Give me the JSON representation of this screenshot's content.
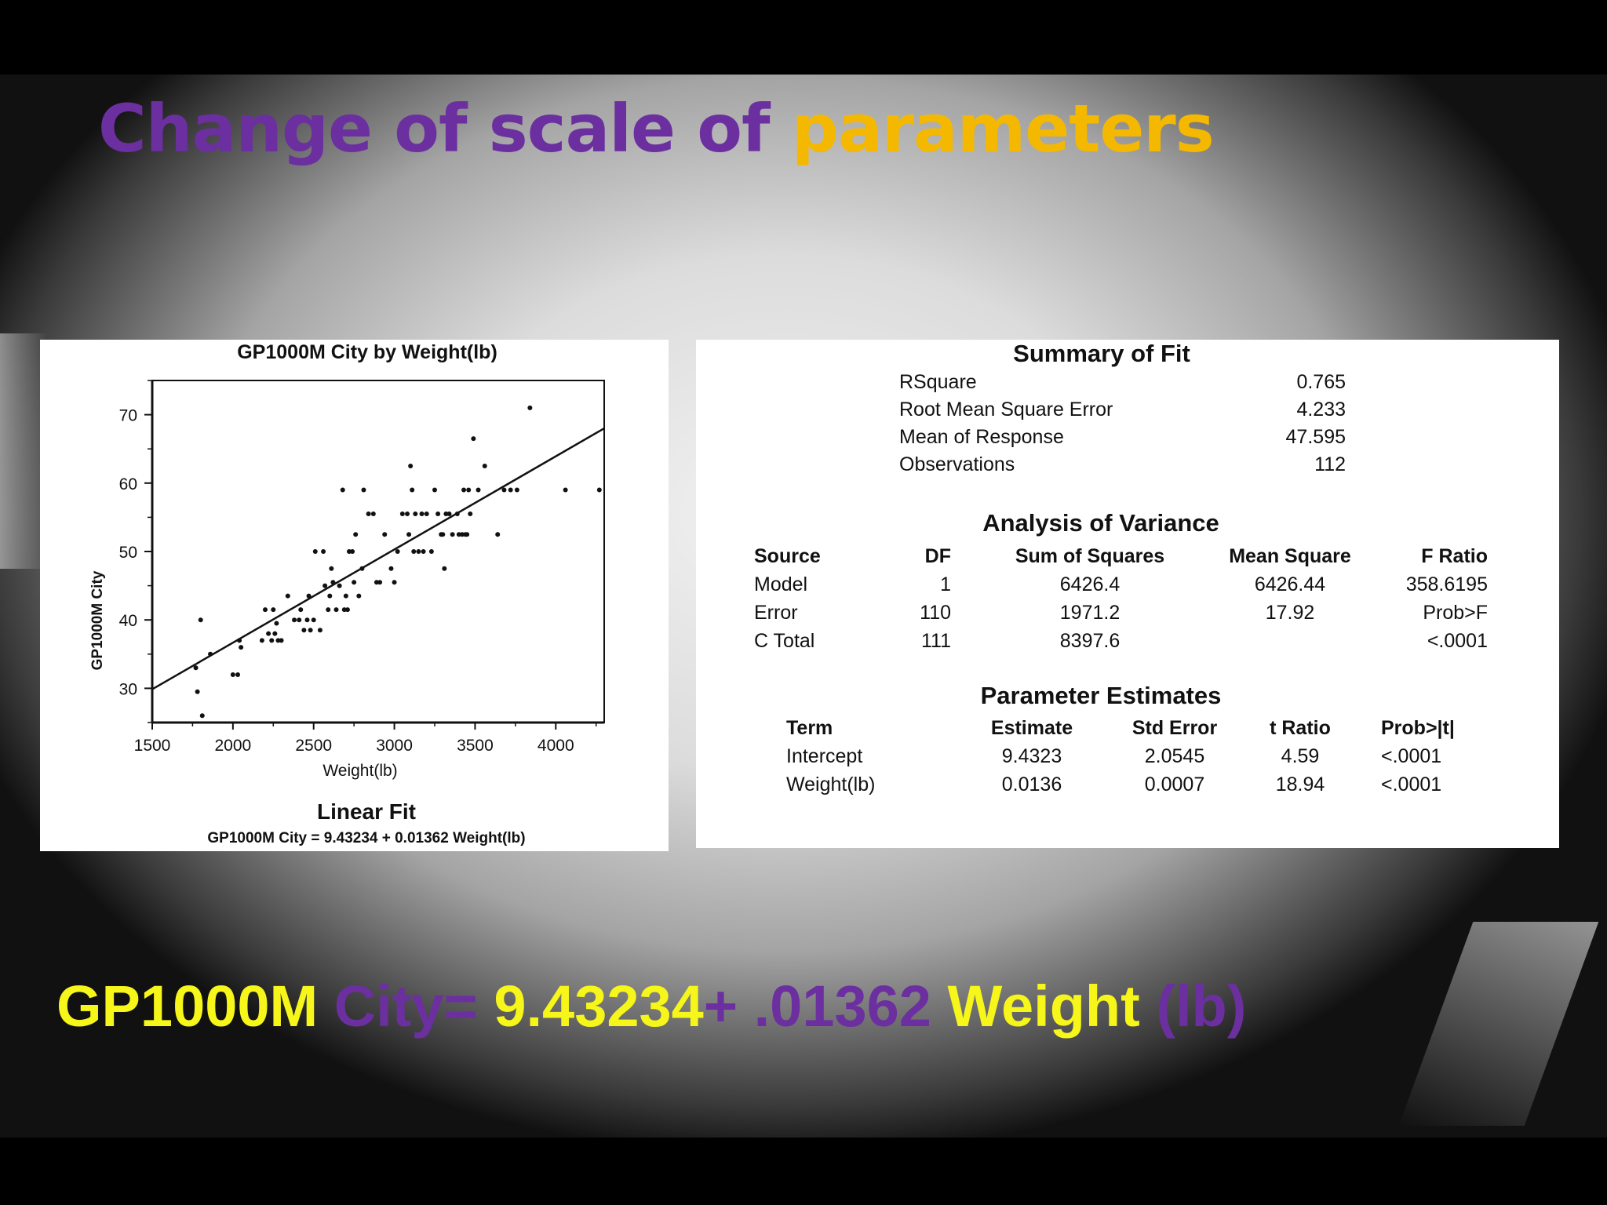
{
  "title": {
    "part1": "Change of scale of ",
    "part2": "parameters"
  },
  "colors": {
    "purple": "#6b2fa0",
    "gold": "#f5b800",
    "yellow": "#f6f61a"
  },
  "chart_data": {
    "type": "scatter",
    "title": "GP1000M City by Weight(lb)",
    "xlabel": "Weight(lb)",
    "ylabel": "GP1000M City",
    "xlim": [
      1500,
      4300
    ],
    "ylim": [
      25,
      75
    ],
    "x_ticks": [
      1500,
      2000,
      2500,
      3000,
      3500,
      4000
    ],
    "y_ticks": [
      30,
      40,
      50,
      60,
      70
    ],
    "fit_label": "Linear Fit",
    "fit_equation": "GP1000M City = 9.43234 + 0.01362 Weight(lb)",
    "fit": {
      "intercept": 9.43234,
      "slope": 0.01362
    },
    "points": [
      [
        1770,
        33
      ],
      [
        1780,
        29.5
      ],
      [
        1800,
        40
      ],
      [
        1810,
        26
      ],
      [
        1860,
        35
      ],
      [
        2000,
        32
      ],
      [
        2030,
        32
      ],
      [
        2040,
        37
      ],
      [
        2050,
        36
      ],
      [
        2180,
        37
      ],
      [
        2200,
        41.5
      ],
      [
        2220,
        38
      ],
      [
        2240,
        37
      ],
      [
        2250,
        41.5
      ],
      [
        2260,
        38
      ],
      [
        2270,
        39.5
      ],
      [
        2280,
        37
      ],
      [
        2300,
        37
      ],
      [
        2340,
        43.5
      ],
      [
        2380,
        40
      ],
      [
        2410,
        40
      ],
      [
        2420,
        41.5
      ],
      [
        2440,
        38.5
      ],
      [
        2460,
        40
      ],
      [
        2470,
        43.5
      ],
      [
        2480,
        38.5
      ],
      [
        2500,
        40
      ],
      [
        2510,
        50
      ],
      [
        2540,
        38.5
      ],
      [
        2560,
        50
      ],
      [
        2570,
        45
      ],
      [
        2590,
        41.5
      ],
      [
        2600,
        43.5
      ],
      [
        2610,
        47.5
      ],
      [
        2620,
        45.5
      ],
      [
        2640,
        41.5
      ],
      [
        2660,
        45
      ],
      [
        2680,
        59
      ],
      [
        2690,
        41.5
      ],
      [
        2700,
        43.5
      ],
      [
        2710,
        41.5
      ],
      [
        2720,
        50
      ],
      [
        2740,
        50
      ],
      [
        2750,
        45.5
      ],
      [
        2760,
        52.5
      ],
      [
        2780,
        43.5
      ],
      [
        2800,
        47.5
      ],
      [
        2810,
        59
      ],
      [
        2840,
        55.5
      ],
      [
        2870,
        55.5
      ],
      [
        2890,
        45.5
      ],
      [
        2910,
        45.5
      ],
      [
        2940,
        52.5
      ],
      [
        2980,
        47.5
      ],
      [
        3000,
        45.5
      ],
      [
        3020,
        50
      ],
      [
        3050,
        55.5
      ],
      [
        3080,
        55.5
      ],
      [
        3090,
        52.5
      ],
      [
        3100,
        62.5
      ],
      [
        3110,
        59
      ],
      [
        3120,
        50
      ],
      [
        3130,
        55.5
      ],
      [
        3150,
        50
      ],
      [
        3170,
        55.5
      ],
      [
        3180,
        50
      ],
      [
        3200,
        55.5
      ],
      [
        3230,
        50
      ],
      [
        3250,
        59
      ],
      [
        3270,
        55.5
      ],
      [
        3290,
        52.5
      ],
      [
        3300,
        52.5
      ],
      [
        3310,
        47.5
      ],
      [
        3320,
        55.5
      ],
      [
        3340,
        55.5
      ],
      [
        3360,
        52.5
      ],
      [
        3390,
        55.5
      ],
      [
        3400,
        52.5
      ],
      [
        3420,
        52.5
      ],
      [
        3430,
        59
      ],
      [
        3440,
        52.5
      ],
      [
        3450,
        52.5
      ],
      [
        3460,
        59
      ],
      [
        3470,
        55.5
      ],
      [
        3490,
        66.5
      ],
      [
        3520,
        59
      ],
      [
        3560,
        62.5
      ],
      [
        3640,
        52.5
      ],
      [
        3680,
        59
      ],
      [
        3720,
        59
      ],
      [
        3760,
        59
      ],
      [
        3840,
        71
      ],
      [
        4060,
        59
      ],
      [
        4270,
        59
      ]
    ]
  },
  "summary": {
    "heading": "Summary of Fit",
    "rows": [
      {
        "label": "RSquare",
        "value": "0.765"
      },
      {
        "label": "Root Mean Square Error",
        "value": "4.233"
      },
      {
        "label": "Mean of Response",
        "value": "47.595"
      },
      {
        "label": "Observations",
        "value": "112"
      }
    ]
  },
  "anova": {
    "heading": "Analysis of Variance",
    "headers": [
      "Source",
      "DF",
      "Sum of Squares",
      "Mean Square",
      "F Ratio"
    ],
    "rows": [
      [
        "Model",
        "1",
        "6426.4",
        "6426.44",
        "358.6195"
      ],
      [
        "Error",
        "110",
        "1971.2",
        "17.92",
        "Prob>F"
      ],
      [
        "C Total",
        "111",
        "8397.6",
        "",
        "<.0001"
      ]
    ]
  },
  "params": {
    "heading": "Parameter Estimates",
    "headers": [
      "Term",
      "Estimate",
      "Std Error",
      "t Ratio",
      "Prob>|t|"
    ],
    "rows": [
      [
        "Intercept",
        "9.4323",
        "2.0545",
        "4.59",
        "<.0001"
      ],
      [
        "Weight(lb)",
        "0.0136",
        "0.0007",
        "18.94",
        "<.0001"
      ]
    ]
  },
  "equation": {
    "p1": "GP1000M",
    "p2": " City= ",
    "p3": "9.43234",
    "p4": "+ .01362 ",
    "p5": "Weight",
    "p6": " (lb)"
  }
}
